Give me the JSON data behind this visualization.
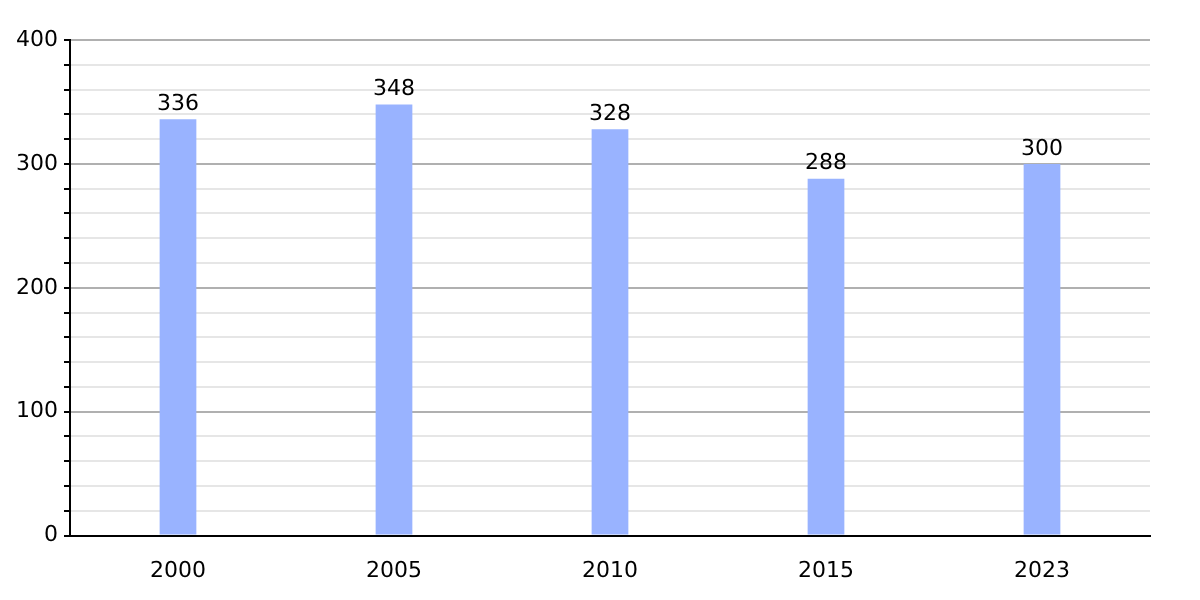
{
  "chart_data": {
    "type": "bar",
    "categories": [
      "2000",
      "2005",
      "2010",
      "2015",
      "2023"
    ],
    "values": [
      336,
      348,
      328,
      288,
      300
    ],
    "color": "#99b3ff",
    "data_labels": true,
    "grid": "y",
    "ylim": [
      0,
      400
    ],
    "yticks": [
      0,
      {
        "value": 20,
        "label": null
      },
      {
        "value": 40,
        "label": null
      },
      {
        "value": 60,
        "label": null
      },
      {
        "value": 80,
        "label": null
      },
      100,
      {
        "value": 120,
        "label": null
      },
      {
        "value": 140,
        "label": null
      },
      {
        "value": 160,
        "label": null
      },
      {
        "value": 180,
        "label": null
      },
      200,
      {
        "value": 220,
        "label": null
      },
      {
        "value": 240,
        "label": null
      },
      {
        "value": 260,
        "label": null
      },
      {
        "value": 280,
        "label": null
      },
      300,
      {
        "value": 320,
        "label": null
      },
      {
        "value": 340,
        "label": null
      },
      {
        "value": 360,
        "label": null
      },
      {
        "value": 380,
        "label": null
      },
      400
    ]
  }
}
